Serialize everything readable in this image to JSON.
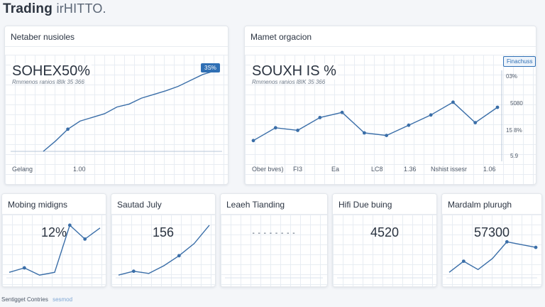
{
  "header": {
    "title": "Trading",
    "brand": "irHITTO."
  },
  "left_panel": {
    "title": "Netaber nusioles",
    "value": "SOHEX50%",
    "subtitle": "Rmmenos ranios  l8Ik  35 366",
    "badge": "3S%",
    "footer_left": "Gelang",
    "footer_right": "1.00",
    "chart_data": {
      "type": "line",
      "x": [
        0,
        1,
        2,
        3,
        4,
        5,
        6,
        7,
        8,
        9,
        10,
        11,
        12,
        13,
        14
      ],
      "values": [
        0.0,
        0.14,
        0.3,
        0.41,
        0.46,
        0.51,
        0.6,
        0.64,
        0.72,
        0.77,
        0.82,
        0.88,
        0.96,
        1.04,
        1.09
      ],
      "markers": [
        2
      ],
      "color": "#3a6ea8",
      "grid": true
    }
  },
  "right_panel": {
    "title": "Mamet orgacion",
    "value": "SOUXH IS %",
    "subtitle": "Rmmenos ranios  l8IK  35 366",
    "badge": "Finachuss",
    "axis_labels": [
      "03%",
      "5080",
      "15 8%",
      "5.9"
    ],
    "footer_items": [
      "Ober bves)",
      "FI3",
      "Ea",
      "LC8",
      "1.36",
      "Nshist issesr",
      "1.06"
    ],
    "chart_data": {
      "type": "line",
      "x": [
        0,
        1,
        2,
        3,
        4,
        5,
        6,
        7,
        8,
        9,
        10,
        11
      ],
      "values": [
        0.1,
        0.35,
        0.3,
        0.55,
        0.65,
        0.25,
        0.2,
        0.4,
        0.6,
        0.85,
        0.45,
        0.75
      ],
      "markers": [
        0,
        1,
        2,
        3,
        4,
        5,
        6,
        7,
        8,
        9,
        10,
        11
      ],
      "color": "#3a6ea8",
      "grid": true
    }
  },
  "mini_cards": [
    {
      "title": "Mobing midigns",
      "value": "12%",
      "hint": "",
      "chart_data": {
        "type": "line",
        "values": [
          0.1,
          0.18,
          0.05,
          0.1,
          0.95,
          0.7,
          0.9
        ],
        "markers": [
          1,
          4,
          5
        ]
      }
    },
    {
      "title": "Sautad July",
      "value": "156",
      "hint": "",
      "chart_data": {
        "type": "line",
        "values": [
          0.05,
          0.12,
          0.08,
          0.22,
          0.4,
          0.62,
          0.95
        ],
        "markers": [
          1,
          4
        ]
      }
    },
    {
      "title": "Leaeh Tianding",
      "value": "- - - - - - - -",
      "hint": "",
      "chart_data": {
        "type": "line",
        "values": [],
        "markers": []
      }
    },
    {
      "title": "Hifi Due buing",
      "value": "4520",
      "hint": "",
      "chart_data": {
        "type": "line",
        "values": [],
        "markers": []
      }
    },
    {
      "title": "Mardalm plurugh",
      "value": "57300",
      "hint": "",
      "chart_data": {
        "type": "line",
        "values": [
          0.1,
          0.3,
          0.15,
          0.35,
          0.65,
          0.6,
          0.55
        ],
        "markers": [
          1,
          4,
          6
        ]
      }
    }
  ],
  "footer": {
    "label": "Sentigget Contries",
    "link": "sesmod"
  }
}
